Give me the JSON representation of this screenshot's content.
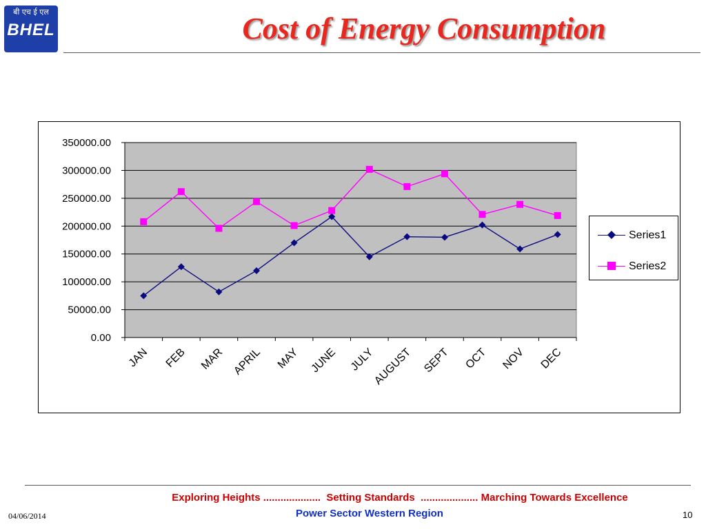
{
  "logo": {
    "hindi_text": "बी एच ई एल",
    "mark_text": "BHEL"
  },
  "slide": {
    "title": "Cost of Energy Consumption",
    "footer_tagline": "Exploring Heights ....................  Setting Standards  .................... Marching Towards Excellence",
    "footer_region": "Power Sector Western Region",
    "date": "04/06/2014",
    "page_number": "10"
  },
  "colors": {
    "title": "#e8281e",
    "series1": "#0a0a80",
    "series2": "#ff00ff",
    "plot_bg": "#c0c0c0",
    "tagline": "#cc0000",
    "region": "#1030c0"
  },
  "chart_data": {
    "type": "line",
    "categories": [
      "JAN",
      "FEB",
      "MAR",
      "APRIL",
      "MAY",
      "JUNE",
      "JULY",
      "AUGUST",
      "SEPT",
      "OCT",
      "NOV",
      "DEC"
    ],
    "series": [
      {
        "name": "Series1",
        "marker": "diamond",
        "values": [
          75000,
          127000,
          82000,
          120000,
          170000,
          217000,
          145000,
          181000,
          180000,
          202000,
          159000,
          185000
        ]
      },
      {
        "name": "Series2",
        "marker": "square",
        "values": [
          208000,
          262000,
          196000,
          244000,
          201000,
          228000,
          302000,
          271000,
          294000,
          221000,
          239000,
          219000
        ]
      }
    ],
    "yticks": [
      "350000.00",
      "300000.00",
      "250000.00",
      "200000.00",
      "150000.00",
      "100000.00",
      "50000.00",
      "0.00"
    ],
    "ylim": [
      0,
      350000
    ],
    "title": "",
    "xlabel": "",
    "ylabel": "",
    "grid": true,
    "legend_position": "right"
  }
}
